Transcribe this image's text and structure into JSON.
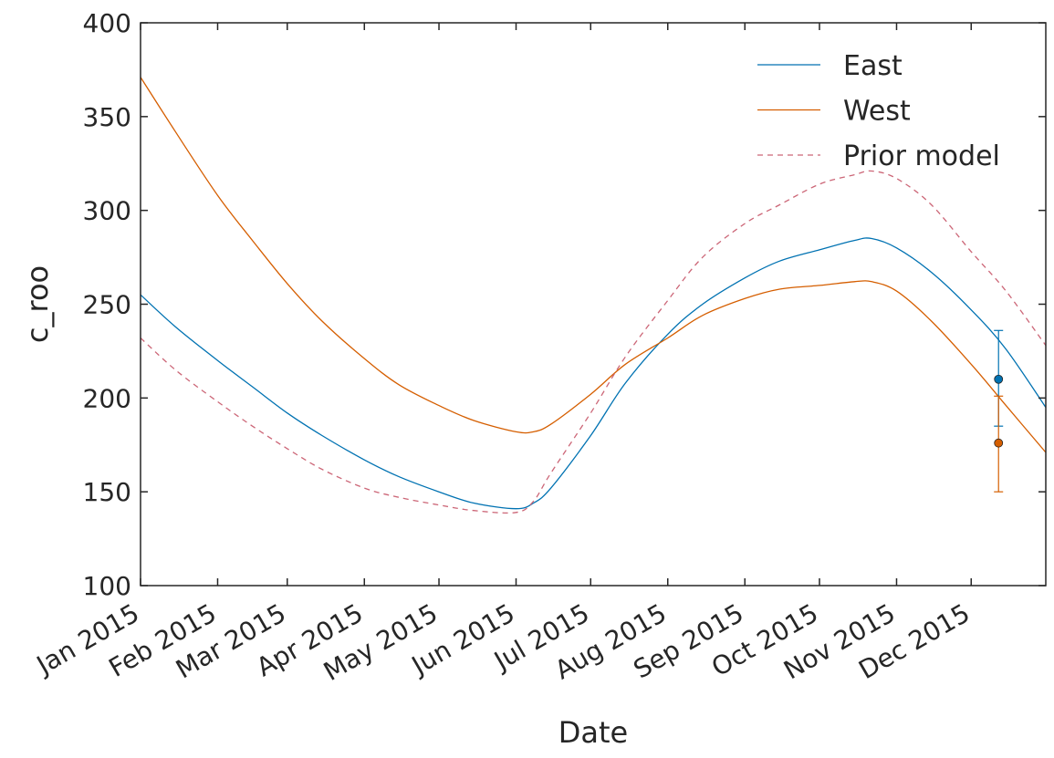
{
  "chart_data": {
    "type": "line",
    "title": "",
    "xlabel": "Date",
    "ylabel": "c_roo",
    "xlim": [
      "2015-01-01",
      "2015-12-31"
    ],
    "ylim": [
      100,
      400
    ],
    "yticks": [
      100,
      150,
      200,
      250,
      300,
      350,
      400
    ],
    "xticks": [
      {
        "date": "2015-01-01",
        "label": "Jan 2015"
      },
      {
        "date": "2015-02-01",
        "label": "Feb 2015"
      },
      {
        "date": "2015-03-01",
        "label": "Mar 2015"
      },
      {
        "date": "2015-04-01",
        "label": "Apr 2015"
      },
      {
        "date": "2015-05-01",
        "label": "May 2015"
      },
      {
        "date": "2015-06-01",
        "label": "Jun 2015"
      },
      {
        "date": "2015-07-01",
        "label": "Jul 2015"
      },
      {
        "date": "2015-08-01",
        "label": "Aug 2015"
      },
      {
        "date": "2015-09-01",
        "label": "Sep 2015"
      },
      {
        "date": "2015-10-01",
        "label": "Oct 2015"
      },
      {
        "date": "2015-11-01",
        "label": "Nov 2015"
      },
      {
        "date": "2015-12-01",
        "label": "Dec 2015"
      }
    ],
    "grid": false,
    "legend": "top-right",
    "series": [
      {
        "name": "East",
        "color": "#0072b2",
        "style": "solid",
        "x": [
          "2015-01-01",
          "2015-01-15",
          "2015-02-01",
          "2015-02-15",
          "2015-03-01",
          "2015-03-15",
          "2015-04-01",
          "2015-04-15",
          "2015-05-01",
          "2015-05-15",
          "2015-06-01",
          "2015-06-08",
          "2015-06-15",
          "2015-07-01",
          "2015-07-15",
          "2015-08-01",
          "2015-08-15",
          "2015-09-01",
          "2015-09-15",
          "2015-10-01",
          "2015-10-15",
          "2015-10-22",
          "2015-11-01",
          "2015-11-15",
          "2015-12-01",
          "2015-12-15",
          "2015-12-31"
        ],
        "y": [
          255,
          238,
          220,
          206,
          192,
          180,
          167,
          158,
          150,
          144,
          141,
          144,
          152,
          180,
          208,
          234,
          250,
          264,
          273,
          279,
          284,
          285,
          280,
          267,
          247,
          226,
          195
        ]
      },
      {
        "name": "West",
        "color": "#d55e00",
        "style": "solid",
        "x": [
          "2015-01-01",
          "2015-01-15",
          "2015-02-01",
          "2015-02-15",
          "2015-03-01",
          "2015-03-15",
          "2015-04-01",
          "2015-04-15",
          "2015-05-01",
          "2015-05-15",
          "2015-06-01",
          "2015-06-08",
          "2015-06-15",
          "2015-07-01",
          "2015-07-15",
          "2015-08-01",
          "2015-08-15",
          "2015-09-01",
          "2015-09-15",
          "2015-10-01",
          "2015-10-15",
          "2015-10-22",
          "2015-11-01",
          "2015-11-15",
          "2015-12-01",
          "2015-12-15",
          "2015-12-31"
        ],
        "y": [
          371,
          342,
          308,
          284,
          261,
          241,
          221,
          207,
          196,
          188,
          182,
          182,
          186,
          202,
          218,
          232,
          244,
          253,
          258,
          260,
          262,
          262,
          257,
          241,
          218,
          196,
          171
        ]
      },
      {
        "name": "Prior model",
        "color": "#cc6677",
        "style": "dashed",
        "x": [
          "2015-01-01",
          "2015-01-15",
          "2015-02-01",
          "2015-02-15",
          "2015-03-01",
          "2015-03-15",
          "2015-04-01",
          "2015-04-15",
          "2015-05-01",
          "2015-05-15",
          "2015-06-01",
          "2015-06-08",
          "2015-06-15",
          "2015-07-01",
          "2015-07-15",
          "2015-08-01",
          "2015-08-15",
          "2015-09-01",
          "2015-09-15",
          "2015-10-01",
          "2015-10-15",
          "2015-10-22",
          "2015-11-01",
          "2015-11-15",
          "2015-12-01",
          "2015-12-15",
          "2015-12-31"
        ],
        "y": [
          232,
          215,
          198,
          185,
          173,
          162,
          152,
          147,
          143,
          140,
          139,
          145,
          160,
          192,
          222,
          252,
          275,
          293,
          303,
          314,
          319,
          321,
          317,
          303,
          278,
          257,
          228
        ]
      }
    ],
    "observations": [
      {
        "series": "East",
        "date": "2015-12-12",
        "value": 210,
        "err_low": 185,
        "err_high": 236,
        "color": "#0072b2"
      },
      {
        "series": "West",
        "date": "2015-12-12",
        "value": 176,
        "err_low": 150,
        "err_high": 201,
        "color": "#d55e00"
      }
    ]
  }
}
